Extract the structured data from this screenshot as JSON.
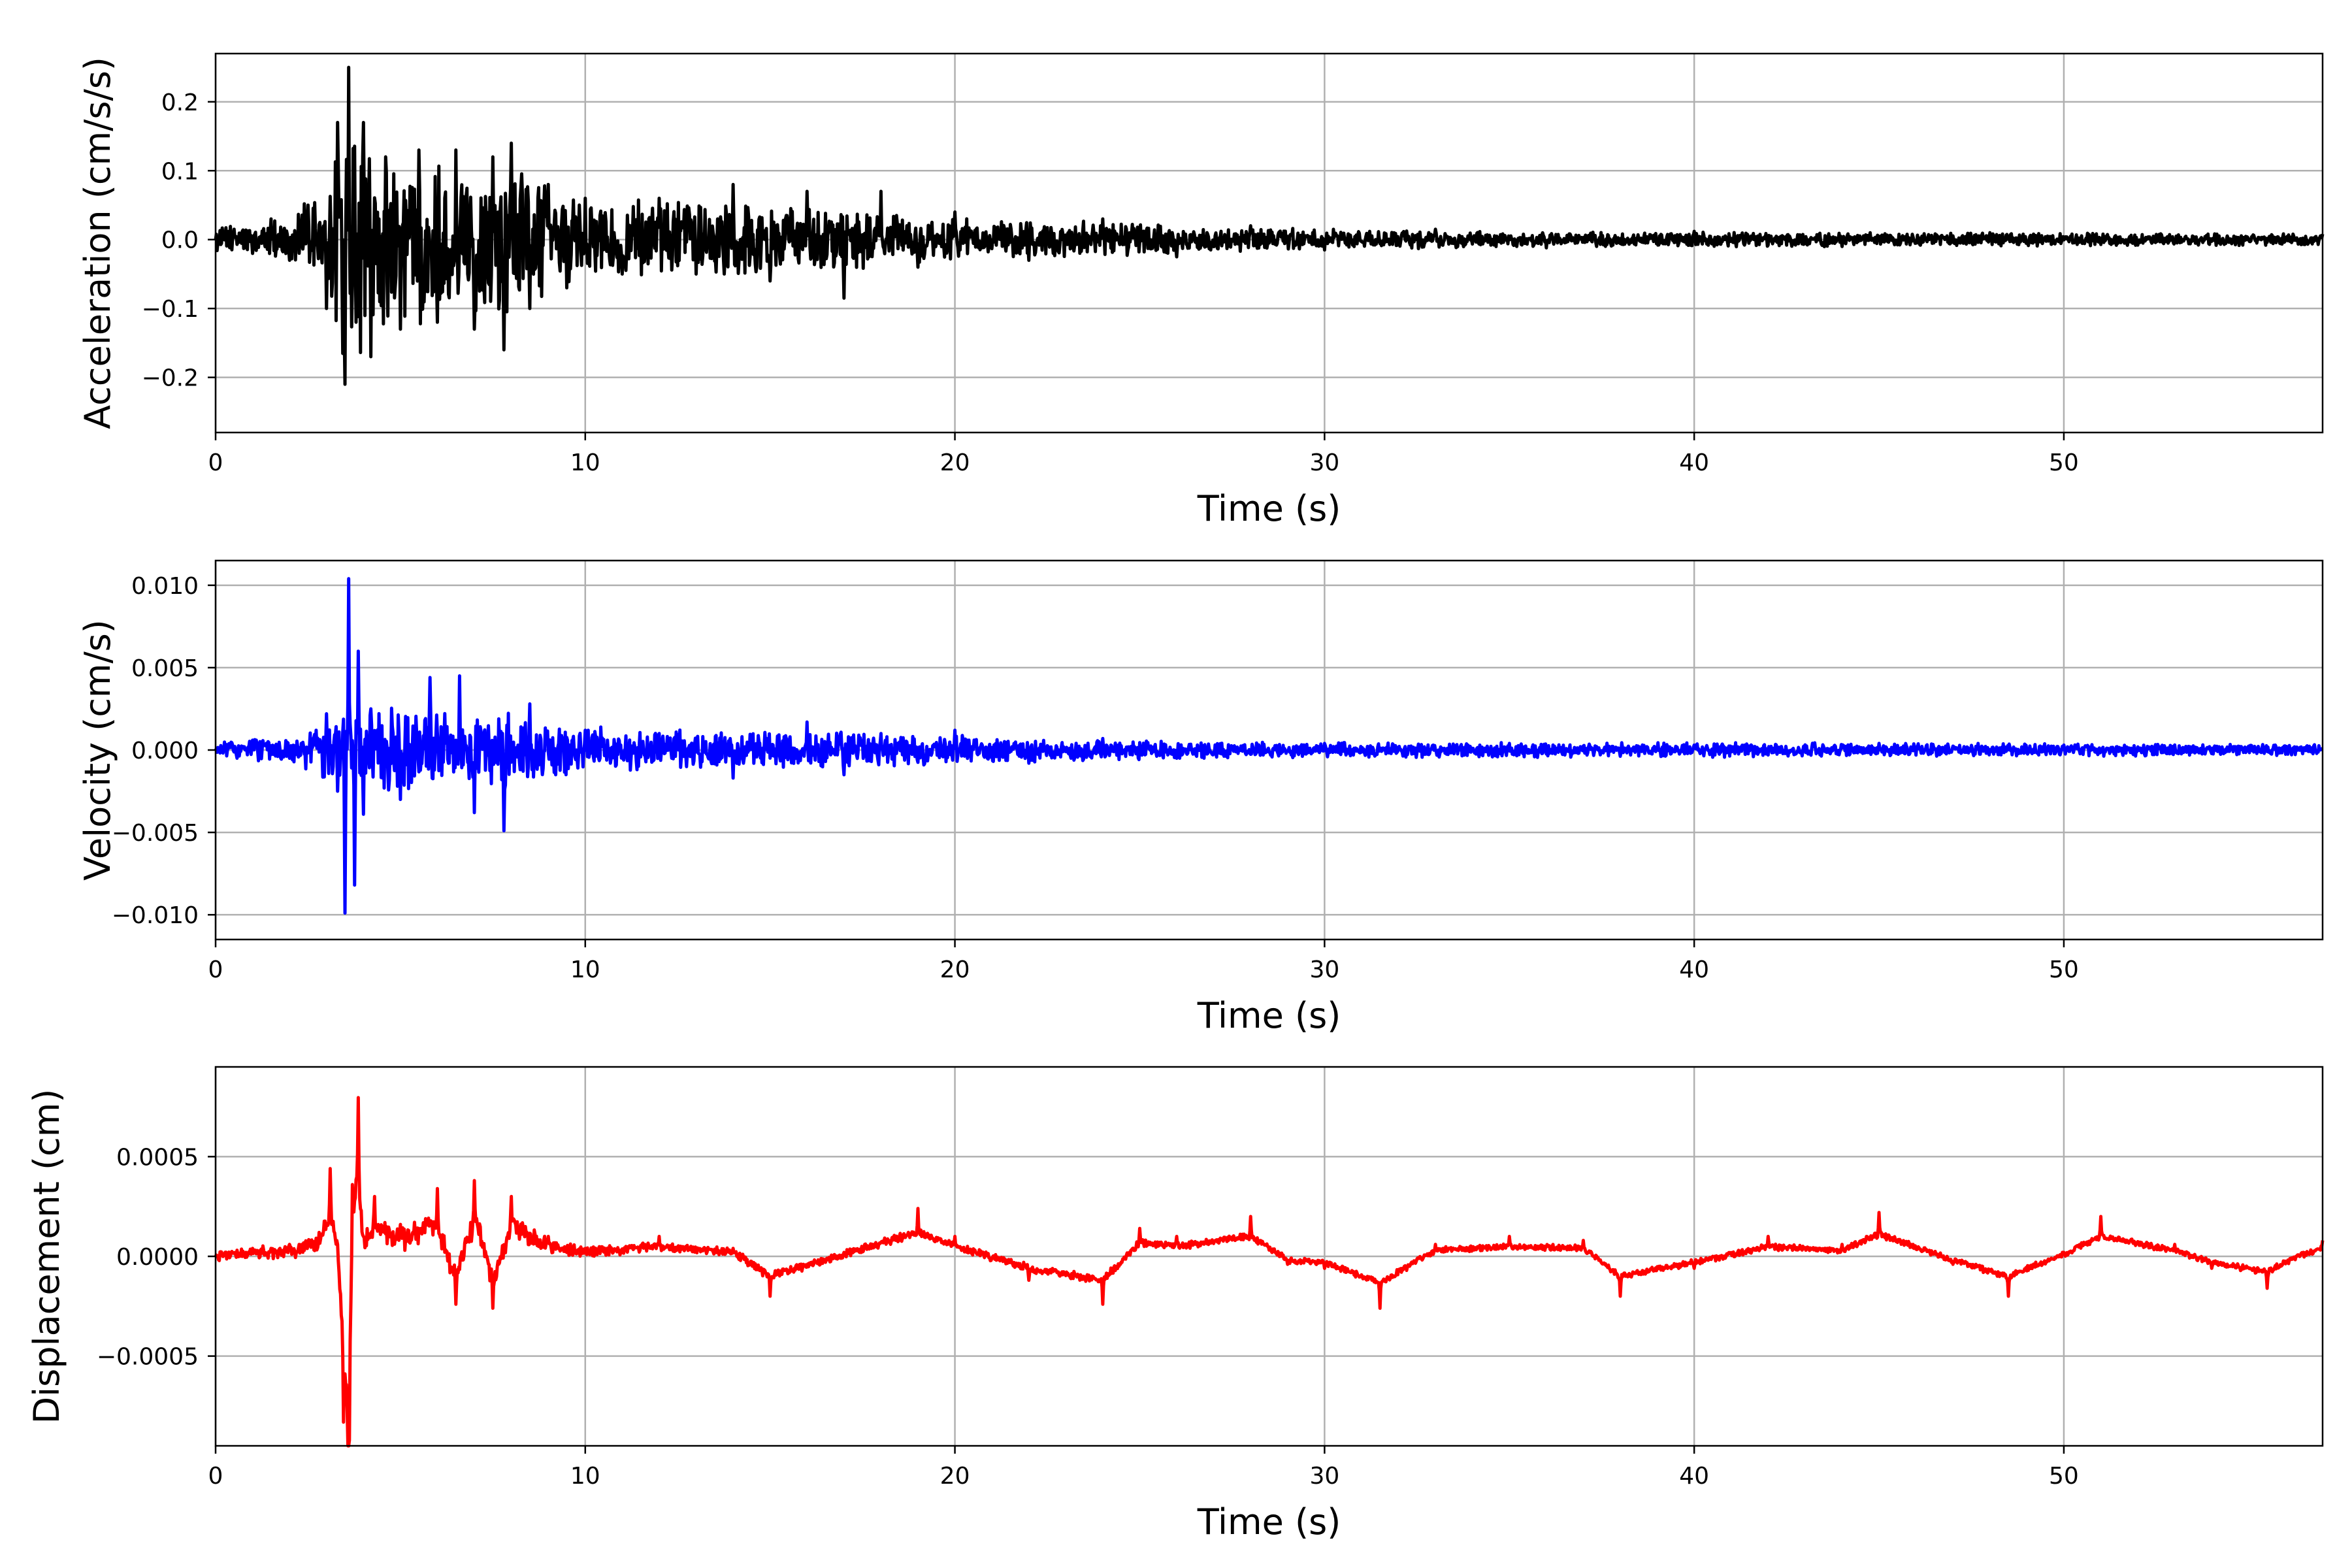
{
  "chart_data": [
    {
      "type": "line",
      "xlabel": "Time (s)",
      "ylabel": "Acceleration (cm/s/s)",
      "xlim": [
        0,
        57
      ],
      "ylim": [
        -0.28,
        0.27
      ],
      "xticks": [
        0,
        10,
        20,
        30,
        40,
        50
      ],
      "xtick_labels": [
        "0",
        "10",
        "20",
        "30",
        "40",
        "50"
      ],
      "yticks": [
        -0.2,
        -0.1,
        0.0,
        0.1,
        0.2
      ],
      "ytick_labels": [
        "−0.2",
        "−0.1",
        "0.0",
        "0.1",
        "0.2"
      ],
      "grid": true,
      "series": [
        {
          "color": "#000000",
          "x": [
            0.0,
            0.5,
            1.0,
            1.5,
            2.0,
            2.5,
            3.0,
            3.3,
            3.5,
            3.6,
            3.8,
            4.0,
            4.2,
            4.6,
            5.0,
            5.5,
            6.0,
            6.5,
            7.0,
            7.5,
            7.8,
            8.0,
            8.5,
            9.0,
            9.5,
            10.0,
            11.0,
            12.0,
            13.0,
            14.0,
            15.0,
            16.0,
            17.0,
            18.0,
            19.0,
            20.0,
            22.0,
            24.0,
            26.0,
            28.0,
            30.0,
            33.0,
            36.0,
            40.0,
            44.0,
            48.0,
            52.0,
            57.0
          ],
          "y": [
            0.0,
            0.015,
            -0.02,
            0.03,
            -0.03,
            0.05,
            -0.1,
            0.17,
            -0.21,
            0.25,
            -0.12,
            0.17,
            -0.17,
            0.12,
            -0.13,
            0.13,
            -0.12,
            0.13,
            -0.13,
            0.12,
            -0.16,
            0.14,
            -0.1,
            0.08,
            -0.07,
            0.06,
            -0.05,
            0.06,
            -0.05,
            0.08,
            -0.06,
            0.07,
            -0.085,
            0.07,
            -0.04,
            0.04,
            -0.03,
            0.03,
            -0.025,
            0.02,
            -0.015,
            0.015,
            -0.012,
            0.012,
            -0.01,
            0.01,
            -0.008,
            0.008
          ],
          "envelope": {
            "t": [
              0,
              2,
              3,
              3.5,
              4.5,
              6,
              8,
              9.5,
              12,
              16,
              18,
              21,
              25,
              30,
              36,
              45,
              57
            ],
            "a": [
              0.015,
              0.03,
              0.07,
              0.18,
              0.12,
              0.1,
              0.1,
              0.06,
              0.05,
              0.045,
              0.035,
              0.025,
              0.022,
              0.013,
              0.01,
              0.009,
              0.008
            ]
          }
        }
      ]
    },
    {
      "type": "line",
      "xlabel": "Time (s)",
      "ylabel": "Velocity (cm/s)",
      "xlim": [
        0,
        57
      ],
      "ylim": [
        -0.0115,
        0.0115
      ],
      "xticks": [
        0,
        10,
        20,
        30,
        40,
        50
      ],
      "xtick_labels": [
        "0",
        "10",
        "20",
        "30",
        "40",
        "50"
      ],
      "yticks": [
        -0.01,
        -0.005,
        0.0,
        0.005,
        0.01
      ],
      "ytick_labels": [
        "−0.010",
        "−0.005",
        "0.000",
        "0.005",
        "0.010"
      ],
      "grid": true,
      "series": [
        {
          "color": "#0000ff",
          "x": [
            0.0,
            1.0,
            2.0,
            3.0,
            3.3,
            3.5,
            3.6,
            3.75,
            3.85,
            4.0,
            4.2,
            5.0,
            5.8,
            6.6,
            7.0,
            7.8,
            8.5,
            9.2,
            10.0,
            12.0,
            14.0,
            16.0,
            17.0,
            18.0,
            20.0,
            22.0,
            24.0,
            26.0,
            30.0,
            35.0,
            40.0,
            45.0,
            50.0,
            57.0
          ],
          "y": [
            0.0,
            0.0006,
            -0.0005,
            0.0022,
            -0.0025,
            -0.0099,
            0.0104,
            -0.0082,
            0.006,
            -0.0039,
            0.0025,
            -0.003,
            0.0044,
            0.0045,
            -0.0038,
            -0.0049,
            0.0028,
            -0.0015,
            0.0012,
            0.001,
            -0.0017,
            0.0017,
            -0.0015,
            0.001,
            0.0012,
            -0.0008,
            0.0007,
            -0.0005,
            0.0004,
            0.0004,
            0.0003,
            0.0004,
            0.0003,
            0.0001
          ],
          "envelope": {
            "t": [
              0,
              2,
              3,
              4.5,
              6,
              8,
              9.5,
              12,
              16,
              18,
              21,
              25,
              30,
              40,
              57
            ],
            "a": [
              0.0004,
              0.0008,
              0.0015,
              0.0025,
              0.0022,
              0.002,
              0.0014,
              0.0011,
              0.001,
              0.0009,
              0.0007,
              0.0005,
              0.0004,
              0.0004,
              0.0003
            ]
          }
        }
      ]
    },
    {
      "type": "line",
      "xlabel": "Time (s)",
      "ylabel": "Displacement (cm)",
      "xlim": [
        0,
        57
      ],
      "ylim": [
        -0.00095,
        0.00095
      ],
      "xticks": [
        0,
        10,
        20,
        30,
        40,
        50
      ],
      "xtick_labels": [
        "0",
        "10",
        "20",
        "30",
        "40",
        "50"
      ],
      "yticks": [
        -0.0005,
        0.0,
        0.0005
      ],
      "ytick_labels": [
        "−0.0005",
        "0.0000",
        "0.0005"
      ],
      "grid": true,
      "series": [
        {
          "color": "#ff0000",
          "x": [
            0.0,
            1.0,
            2.0,
            2.8,
            3.1,
            3.3,
            3.45,
            3.6,
            3.7,
            3.85,
            4.0,
            4.3,
            5.0,
            6.0,
            6.5,
            7.0,
            7.5,
            8.0,
            9.0,
            10.0,
            12.0,
            14.0,
            15.0,
            17.0,
            19.0,
            20.0,
            22.0,
            24.0,
            25.0,
            26.0,
            28.0,
            29.0,
            30.0,
            31.5,
            33.0,
            35.0,
            37.0,
            38.0,
            40.0,
            42.0,
            44.0,
            45.0,
            47.0,
            48.5,
            50.0,
            51.0,
            53.0,
            54.0,
            55.5,
            56.3,
            57.0
          ],
          "y": [
            0.0,
            2e-05,
            3e-05,
            6e-05,
            0.00022,
            3e-05,
            -0.0004,
            -0.00087,
            0.00018,
            0.00041,
            5e-05,
            0.00015,
            8e-05,
            0.00017,
            -0.00012,
            0.00019,
            -0.00013,
            0.00015,
            5e-05,
            2e-05,
            5e-05,
            2e-05,
            -0.0001,
            1e-05,
            0.00012,
            5e-05,
            -6e-05,
            -0.00012,
            7e-05,
            5e-05,
            0.0001,
            -2e-05,
            -3e-05,
            -0.00013,
            3e-05,
            5e-05,
            4e-05,
            -0.0001,
            -3e-05,
            5e-05,
            3e-05,
            0.00011,
            -2e-05,
            -0.0001,
            1e-05,
            0.0001,
            3e-05,
            -3e-05,
            -8e-05,
            0.0,
            4e-05
          ],
          "envelope": {
            "t": [
              0,
              2.5,
              4.5,
              6,
              8,
              9.5,
              12,
              20,
              30,
              57
            ],
            "a": [
              2e-05,
              4e-05,
              6e-05,
              6e-05,
              5e-05,
              3e-05,
              2e-05,
              2e-05,
              1.5e-05,
              1.5e-05
            ]
          }
        }
      ]
    }
  ]
}
